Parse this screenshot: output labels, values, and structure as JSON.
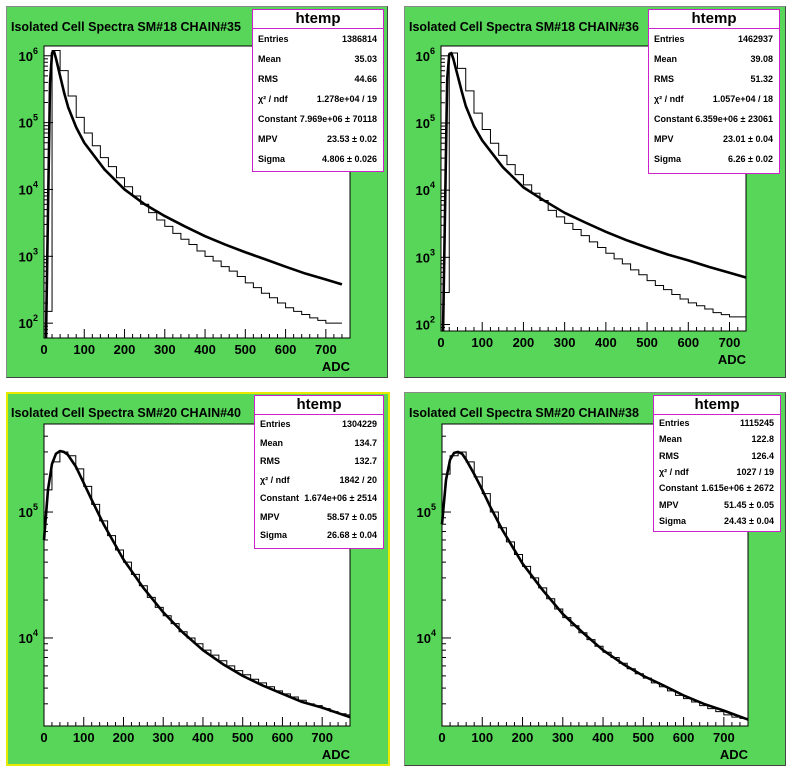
{
  "colors": {
    "pad_bg": "#57d659",
    "frame_bg": "#ffffff",
    "stats_border": "#cc22cc",
    "selected_border": "#e8e800"
  },
  "chart_data": [
    {
      "type": "histogram",
      "title": "Isolated Cell Spectra SM#18 CHAIN#35",
      "xlabel": "ADC",
      "ylabel": "",
      "xlim": [
        0,
        760
      ],
      "ylog": true,
      "ylim": [
        60,
        1400000
      ],
      "x_ticks": [
        "0",
        "100",
        "200",
        "300",
        "400",
        "500",
        "600",
        "700"
      ],
      "y_ticks": [
        {
          "base": "10",
          "exp": "2",
          "v": 100
        },
        {
          "base": "10",
          "exp": "3",
          "v": 1000
        },
        {
          "base": "10",
          "exp": "4",
          "v": 10000
        },
        {
          "base": "10",
          "exp": "5",
          "v": 100000
        },
        {
          "base": "10",
          "exp": "6",
          "v": 1000000
        }
      ],
      "histogram": {
        "x": [
          0,
          20,
          40,
          60,
          80,
          100,
          120,
          140,
          160,
          180,
          200,
          220,
          240,
          260,
          280,
          300,
          320,
          340,
          360,
          380,
          400,
          420,
          440,
          460,
          480,
          500,
          520,
          540,
          560,
          580,
          600,
          620,
          640,
          660,
          680,
          700,
          720,
          740
        ],
        "y": [
          150,
          1200000,
          600000,
          250000,
          120000,
          70000,
          45000,
          30000,
          22000,
          15000,
          11000,
          8000,
          6000,
          4500,
          3500,
          2800,
          2200,
          1800,
          1500,
          1200,
          1000,
          850,
          700,
          600,
          500,
          400,
          340,
          280,
          240,
          200,
          170,
          150,
          135,
          120,
          110,
          100,
          100
        ]
      },
      "fit": {
        "x": [
          5,
          10,
          15,
          20,
          25,
          30,
          40,
          50,
          60,
          80,
          100,
          150,
          200,
          250,
          300,
          350,
          400,
          450,
          500,
          550,
          600,
          650,
          700,
          740
        ],
        "y": [
          60,
          5000,
          400000,
          1100000,
          1150000,
          900000,
          500000,
          280000,
          170000,
          85000,
          50000,
          20000,
          10000,
          6000,
          4000,
          2800,
          2000,
          1500,
          1150,
          900,
          700,
          550,
          450,
          380
        ]
      },
      "stats": {
        "header": "htemp",
        "rows": [
          {
            "k": "Entries",
            "v": "1386814"
          },
          {
            "k": "Mean",
            "v": "35.03"
          },
          {
            "k": "RMS",
            "v": "44.66"
          },
          {
            "k": "χ² / ndf",
            "v": "1.278e+04 / 19"
          },
          {
            "k": "Constant",
            "v": "7.969e+06 ± 70118"
          },
          {
            "k": "MPV",
            "v": "23.53 ± 0.02"
          },
          {
            "k": "Sigma",
            "v": "4.806 ± 0.026"
          }
        ]
      }
    },
    {
      "type": "histogram",
      "title": "Isolated Cell Spectra SM#18 CHAIN#36",
      "xlabel": "ADC",
      "ylabel": "",
      "xlim": [
        0,
        740
      ],
      "ylog": true,
      "ylim": [
        80,
        1400000
      ],
      "x_ticks": [
        "0",
        "100",
        "200",
        "300",
        "400",
        "500",
        "600",
        "700"
      ],
      "y_ticks": [
        {
          "base": "10",
          "exp": "2",
          "v": 100
        },
        {
          "base": "10",
          "exp": "3",
          "v": 1000
        },
        {
          "base": "10",
          "exp": "4",
          "v": 10000
        },
        {
          "base": "10",
          "exp": "5",
          "v": 100000
        },
        {
          "base": "10",
          "exp": "6",
          "v": 1000000
        }
      ],
      "histogram": {
        "x": [
          0,
          20,
          40,
          60,
          80,
          100,
          120,
          140,
          160,
          180,
          200,
          220,
          240,
          260,
          280,
          300,
          320,
          340,
          360,
          380,
          400,
          420,
          440,
          460,
          480,
          500,
          520,
          540,
          560,
          580,
          600,
          620,
          640,
          660,
          680,
          700,
          720,
          740
        ],
        "y": [
          300,
          1100000,
          650000,
          300000,
          140000,
          80000,
          50000,
          33000,
          24000,
          17000,
          12000,
          9000,
          7000,
          5000,
          4000,
          3200,
          2600,
          2100,
          1700,
          1400,
          1150,
          950,
          800,
          650,
          550,
          450,
          380,
          330,
          280,
          240,
          210,
          190,
          170,
          150,
          140,
          130,
          130
        ]
      },
      "fit": {
        "x": [
          5,
          10,
          15,
          20,
          25,
          30,
          40,
          50,
          60,
          80,
          100,
          150,
          200,
          250,
          300,
          350,
          400,
          450,
          500,
          550,
          600,
          650,
          700,
          740
        ],
        "y": [
          80,
          6000,
          450000,
          1050000,
          1100000,
          900000,
          520000,
          300000,
          180000,
          90000,
          55000,
          22000,
          11000,
          7000,
          4600,
          3300,
          2400,
          1800,
          1400,
          1100,
          900,
          720,
          590,
          500
        ]
      },
      "stats": {
        "header": "htemp",
        "rows": [
          {
            "k": "Entries",
            "v": "1462937"
          },
          {
            "k": "Mean",
            "v": "39.08"
          },
          {
            "k": "RMS",
            "v": "51.32"
          },
          {
            "k": "χ² / ndf",
            "v": "1.057e+04 / 18"
          },
          {
            "k": "Constant",
            "v": "6.359e+06 ± 23061"
          },
          {
            "k": "MPV",
            "v": "23.01 ± 0.04"
          },
          {
            "k": "Sigma",
            "v": "6.26 ± 0.02"
          }
        ]
      }
    },
    {
      "type": "histogram",
      "title": "Isolated Cell Spectra SM#20 CHAIN#40",
      "xlabel": "ADC",
      "ylabel": "",
      "xlim": [
        0,
        770
      ],
      "ylog": true,
      "ylim": [
        2000,
        500000
      ],
      "x_ticks": [
        "0",
        "100",
        "200",
        "300",
        "400",
        "500",
        "600",
        "700"
      ],
      "y_ticks": [
        {
          "base": "10",
          "exp": "4",
          "v": 10000
        },
        {
          "base": "10",
          "exp": "5",
          "v": 100000
        }
      ],
      "histogram": {
        "x": [
          0,
          20,
          40,
          60,
          80,
          100,
          120,
          140,
          160,
          180,
          200,
          220,
          240,
          260,
          280,
          300,
          320,
          340,
          360,
          380,
          400,
          420,
          440,
          460,
          480,
          500,
          520,
          540,
          560,
          580,
          600,
          620,
          640,
          660,
          680,
          700,
          720,
          740,
          760,
          770
        ],
        "y": [
          150000,
          250000,
          300000,
          280000,
          220000,
          160000,
          115000,
          85000,
          65000,
          50000,
          40000,
          32000,
          26000,
          21000,
          17500,
          15000,
          13000,
          11200,
          10000,
          9000,
          8000,
          7300,
          6600,
          6000,
          5500,
          5100,
          4700,
          4400,
          4100,
          3800,
          3600,
          3400,
          3200,
          3000,
          2900,
          2750,
          2600,
          2500,
          2450
        ]
      },
      "fit": {
        "x": [
          0,
          10,
          20,
          30,
          40,
          50,
          60,
          80,
          100,
          120,
          150,
          200,
          250,
          300,
          350,
          400,
          450,
          500,
          550,
          600,
          650,
          700,
          770
        ],
        "y": [
          60000,
          150000,
          240000,
          290000,
          305000,
          300000,
          285000,
          230000,
          170000,
          125000,
          80000,
          42000,
          25000,
          16000,
          11000,
          8000,
          6200,
          5000,
          4200,
          3600,
          3100,
          2800,
          2350
        ]
      },
      "stats": {
        "header": "htemp",
        "rows": [
          {
            "k": "Entries",
            "v": "1304229"
          },
          {
            "k": "Mean",
            "v": "134.7"
          },
          {
            "k": "RMS",
            "v": "132.7"
          },
          {
            "k": "χ² / ndf",
            "v": "1842 / 20"
          },
          {
            "k": "Constant",
            "v": "1.674e+06 ± 2514"
          },
          {
            "k": "MPV",
            "v": "58.57 ± 0.05"
          },
          {
            "k": "Sigma",
            "v": "26.68 ± 0.04"
          }
        ]
      }
    },
    {
      "type": "histogram",
      "title": "Isolated Cell Spectra SM#20 CHAIN#38",
      "xlabel": "ADC",
      "ylabel": "",
      "xlim": [
        0,
        760
      ],
      "ylog": true,
      "ylim": [
        2000,
        500000
      ],
      "x_ticks": [
        "0",
        "100",
        "200",
        "300",
        "400",
        "500",
        "600",
        "700"
      ],
      "y_ticks": [
        {
          "base": "10",
          "exp": "4",
          "v": 10000
        },
        {
          "base": "10",
          "exp": "5",
          "v": 100000
        }
      ],
      "histogram": {
        "x": [
          0,
          20,
          40,
          60,
          80,
          100,
          120,
          140,
          160,
          180,
          200,
          220,
          240,
          260,
          280,
          300,
          320,
          340,
          360,
          380,
          400,
          420,
          440,
          460,
          480,
          500,
          520,
          540,
          560,
          580,
          600,
          620,
          640,
          660,
          680,
          700,
          720,
          740,
          760
        ],
        "y": [
          200000,
          280000,
          300000,
          250000,
          190000,
          140000,
          100000,
          75000,
          58000,
          46000,
          37000,
          30000,
          25000,
          20500,
          17000,
          14500,
          12500,
          11000,
          9700,
          8600,
          7700,
          7000,
          6300,
          5700,
          5200,
          4800,
          4400,
          4100,
          3800,
          3500,
          3300,
          3100,
          2900,
          2750,
          2600,
          2450,
          2350,
          2300
        ]
      },
      "fit": {
        "x": [
          0,
          10,
          20,
          30,
          40,
          50,
          60,
          80,
          100,
          120,
          150,
          200,
          250,
          300,
          350,
          400,
          450,
          500,
          550,
          600,
          650,
          700,
          760
        ],
        "y": [
          80000,
          180000,
          260000,
          295000,
          300000,
          290000,
          260000,
          200000,
          150000,
          110000,
          72000,
          39000,
          24000,
          15500,
          11000,
          8000,
          6200,
          5000,
          4200,
          3500,
          3000,
          2650,
          2250
        ]
      },
      "stats": {
        "header": "htemp",
        "rows": [
          {
            "k": "Entries",
            "v": "1115245"
          },
          {
            "k": "Mean",
            "v": "122.8"
          },
          {
            "k": "RMS",
            "v": "126.4"
          },
          {
            "k": "χ² / ndf",
            "v": "1027 / 19"
          },
          {
            "k": "Constant",
            "v": "1.615e+06 ± 2672"
          },
          {
            "k": "MPV",
            "v": "51.45 ± 0.05"
          },
          {
            "k": "Sigma",
            "v": "24.43 ± 0.04"
          }
        ]
      }
    }
  ]
}
